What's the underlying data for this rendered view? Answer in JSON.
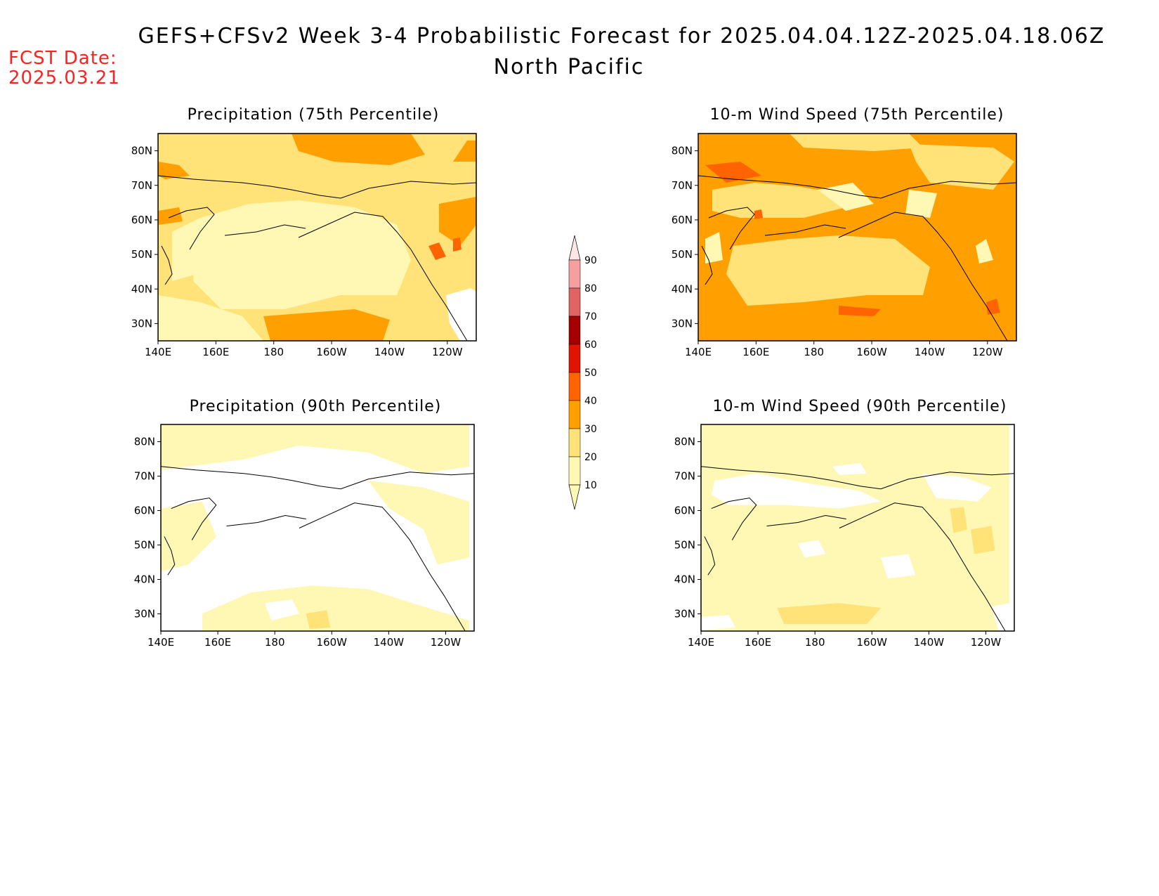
{
  "title": {
    "line1": "GEFS+CFSv2 Week 3-4 Probabilistic Forecast for 2025.04.04.12Z-2025.04.18.06Z",
    "line2": "North Pacific"
  },
  "fcst": {
    "label": "FCST Date:",
    "value": "2025.03.21"
  },
  "panels": [
    {
      "title": "Precipitation (75th Percentile)"
    },
    {
      "title": "10-m Wind Speed (75th Percentile)"
    },
    {
      "title": "Precipitation (90th Percentile)"
    },
    {
      "title": "10-m Wind Speed (90th Percentile)"
    }
  ],
  "axes": {
    "lat_ticks": [
      "80N",
      "70N",
      "60N",
      "50N",
      "40N",
      "30N"
    ],
    "lon_ticks": [
      "140E",
      "160E",
      "180",
      "160W",
      "140W",
      "120W"
    ]
  },
  "colorbar": {
    "levels": [
      "10",
      "20",
      "30",
      "40",
      "50",
      "60",
      "70",
      "80",
      "90"
    ],
    "colors": [
      "#fff8b4",
      "#ffe278",
      "#ffa000",
      "#ff6400",
      "#e11400",
      "#a50000",
      "#e16464",
      "#f5a0a0",
      "#ffe6e6"
    ]
  },
  "palette": {
    "white": "#ffffff",
    "light": "#fff8b4",
    "yellow": "#ffe278",
    "orange": "#ffa000",
    "dark_orange": "#ff6400"
  }
}
